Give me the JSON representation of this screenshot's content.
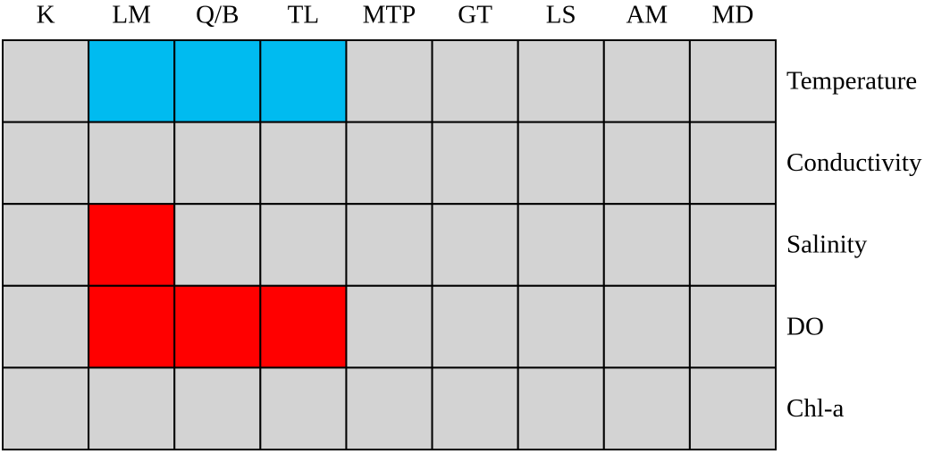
{
  "grid": {
    "columns": [
      "K",
      "LM",
      "Q/B",
      "TL",
      "MTP",
      "GT",
      "LS",
      "AM",
      "MD"
    ],
    "rows": [
      "Temperature",
      "Conductivity",
      "Salinity",
      "DO",
      "Chl-a"
    ],
    "cell_colors": [
      [
        "#d3d3d3",
        "#00bbf0",
        "#00bbf0",
        "#00bbf0",
        "#d3d3d3",
        "#d3d3d3",
        "#d3d3d3",
        "#d3d3d3",
        "#d3d3d3"
      ],
      [
        "#d3d3d3",
        "#d3d3d3",
        "#d3d3d3",
        "#d3d3d3",
        "#d3d3d3",
        "#d3d3d3",
        "#d3d3d3",
        "#d3d3d3",
        "#d3d3d3"
      ],
      [
        "#d3d3d3",
        "#ff0000",
        "#d3d3d3",
        "#d3d3d3",
        "#d3d3d3",
        "#d3d3d3",
        "#d3d3d3",
        "#d3d3d3",
        "#d3d3d3"
      ],
      [
        "#d3d3d3",
        "#ff0000",
        "#ff0000",
        "#ff0000",
        "#d3d3d3",
        "#d3d3d3",
        "#d3d3d3",
        "#d3d3d3",
        "#d3d3d3"
      ],
      [
        "#d3d3d3",
        "#d3d3d3",
        "#d3d3d3",
        "#d3d3d3",
        "#d3d3d3",
        "#d3d3d3",
        "#d3d3d3",
        "#d3d3d3",
        "#d3d3d3"
      ]
    ]
  }
}
